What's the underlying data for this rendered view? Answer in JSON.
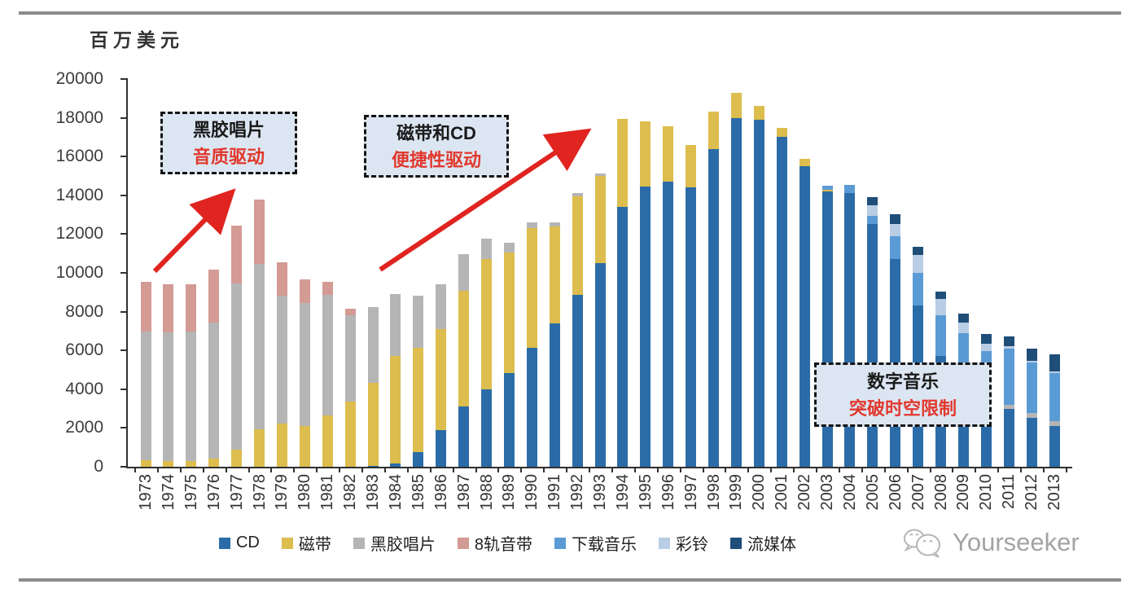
{
  "page": {
    "background": "#ffffff",
    "accent_red": "#e02420",
    "annotation_bg": "#dce6f2",
    "rule_color": "#8a8a8a"
  },
  "chart": {
    "unit_label": "百万美元",
    "y_ticks": [
      "0",
      "2000",
      "4000",
      "6000",
      "8000",
      "10000",
      "12000",
      "14000",
      "16000",
      "18000",
      "20000"
    ],
    "annotations": [
      {
        "line1": "黑胶唱片",
        "line2": "音质驱动"
      },
      {
        "line1": "磁带和CD",
        "line2": "便捷性驱动"
      },
      {
        "line1": "数字音乐",
        "line2": "突破时空限制"
      }
    ],
    "watermark": "Yourseeker"
  },
  "chart_data": {
    "type": "bar",
    "stacked": true,
    "title": "",
    "ylabel": "百万美元",
    "xlabel": "",
    "ylim": [
      0,
      20000
    ],
    "ytick_step": 2000,
    "grid": false,
    "legend_position": "bottom",
    "categories": [
      1973,
      1974,
      1975,
      1976,
      1977,
      1978,
      1979,
      1980,
      1981,
      1982,
      1983,
      1984,
      1985,
      1986,
      1987,
      1988,
      1989,
      1990,
      1991,
      1992,
      1993,
      1994,
      1995,
      1996,
      1997,
      1998,
      1999,
      2000,
      2001,
      2002,
      2003,
      2004,
      2005,
      2006,
      2007,
      2008,
      2009,
      2010,
      2011,
      2012,
      2013
    ],
    "series": [
      {
        "name": "CD",
        "color": "#2b6ca8",
        "values": [
          0,
          0,
          0,
          0,
          0,
          0,
          0,
          0,
          0,
          0,
          30,
          150,
          760,
          1890,
          3110,
          3990,
          4830,
          6130,
          7390,
          8860,
          10500,
          13400,
          14450,
          14700,
          14400,
          16380,
          17980,
          17890,
          17010,
          15500,
          14200,
          14100,
          12520,
          10710,
          8320,
          5700,
          4200,
          3400,
          2980,
          2520,
          2100
        ]
      },
      {
        "name": "磁带",
        "color": "#ddbd4d",
        "values": [
          350,
          300,
          300,
          400,
          900,
          1930,
          2230,
          2100,
          2650,
          3370,
          4290,
          5570,
          5370,
          5210,
          5960,
          6720,
          6220,
          6170,
          5010,
          5100,
          4520,
          4550,
          3350,
          2850,
          2200,
          1920,
          1320,
          710,
          490,
          400,
          100,
          0,
          0,
          0,
          0,
          0,
          0,
          0,
          0,
          0,
          0
        ]
      },
      {
        "name": "黑胶唱片",
        "color": "#b5b5b5",
        "values": [
          6620,
          6630,
          6670,
          7040,
          8550,
          8530,
          6590,
          6350,
          6220,
          4440,
          3910,
          3200,
          2690,
          2310,
          1890,
          1050,
          500,
          300,
          200,
          150,
          100,
          0,
          0,
          0,
          0,
          0,
          0,
          0,
          0,
          0,
          0,
          0,
          0,
          0,
          0,
          0,
          0,
          0,
          200,
          250,
          250
        ]
      },
      {
        "name": "8轨音带",
        "color": "#d49a94",
        "values": [
          2560,
          2470,
          2430,
          2720,
          3000,
          3340,
          1730,
          1200,
          660,
          330,
          0,
          0,
          0,
          0,
          0,
          0,
          0,
          0,
          0,
          0,
          0,
          0,
          0,
          0,
          0,
          0,
          0,
          0,
          0,
          0,
          0,
          0,
          0,
          0,
          0,
          0,
          0,
          0,
          0,
          0,
          0
        ]
      },
      {
        "name": "下载音乐",
        "color": "#5b9bd5",
        "values": [
          0,
          0,
          0,
          0,
          0,
          0,
          0,
          0,
          0,
          0,
          0,
          0,
          0,
          0,
          0,
          0,
          0,
          0,
          0,
          0,
          0,
          0,
          0,
          0,
          0,
          0,
          0,
          0,
          0,
          0,
          200,
          430,
          420,
          1180,
          1680,
          2100,
          2700,
          2550,
          2920,
          2610,
          2500
        ]
      },
      {
        "name": "彩铃",
        "color": "#b9cde5",
        "values": [
          0,
          0,
          0,
          0,
          0,
          0,
          0,
          0,
          0,
          0,
          0,
          0,
          0,
          0,
          0,
          0,
          0,
          0,
          0,
          0,
          0,
          0,
          0,
          0,
          0,
          0,
          0,
          0,
          0,
          0,
          0,
          0,
          540,
          630,
          920,
          840,
          550,
          400,
          100,
          80,
          50
        ]
      },
      {
        "name": "流媒体",
        "color": "#1f4e79",
        "values": [
          0,
          0,
          0,
          0,
          0,
          0,
          0,
          0,
          0,
          0,
          0,
          0,
          0,
          0,
          0,
          0,
          0,
          0,
          0,
          0,
          0,
          0,
          0,
          0,
          0,
          0,
          0,
          0,
          0,
          0,
          0,
          0,
          420,
          500,
          420,
          380,
          450,
          500,
          520,
          630,
          900
        ]
      }
    ]
  }
}
